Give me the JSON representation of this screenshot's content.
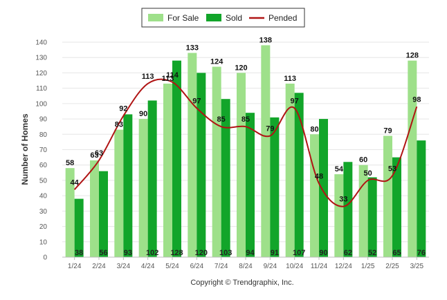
{
  "chart_data": {
    "type": "bar",
    "title": "",
    "xlabel": "",
    "ylabel": "Number of Homes",
    "ylim": [
      0,
      140
    ],
    "yticks": [
      0,
      10,
      20,
      30,
      40,
      50,
      60,
      70,
      80,
      90,
      100,
      110,
      120,
      130,
      140
    ],
    "grid": true,
    "legend_position": "top-center",
    "categories": [
      "1/24",
      "2/24",
      "3/24",
      "4/24",
      "5/24",
      "6/24",
      "7/24",
      "8/24",
      "9/24",
      "10/24",
      "11/24",
      "12/24",
      "1/25",
      "2/25",
      "3/25"
    ],
    "series": [
      {
        "name": "For Sale",
        "type": "bar",
        "color": "#9ee08a",
        "values": [
          58,
          63,
          83,
          90,
          113,
          133,
          124,
          120,
          138,
          113,
          80,
          54,
          60,
          79,
          128
        ]
      },
      {
        "name": "Sold",
        "type": "bar",
        "color": "#12a52a",
        "values": [
          38,
          56,
          93,
          102,
          128,
          120,
          103,
          94,
          91,
          107,
          90,
          62,
          52,
          65,
          76
        ]
      },
      {
        "name": "Pended",
        "type": "line",
        "color": "#b01414",
        "values": [
          44,
          63,
          92,
          113,
          114,
          97,
          85,
          85,
          79,
          97,
          48,
          33,
          50,
          53,
          98
        ]
      }
    ],
    "footer": "Copyright © Trendgraphix, Inc."
  }
}
